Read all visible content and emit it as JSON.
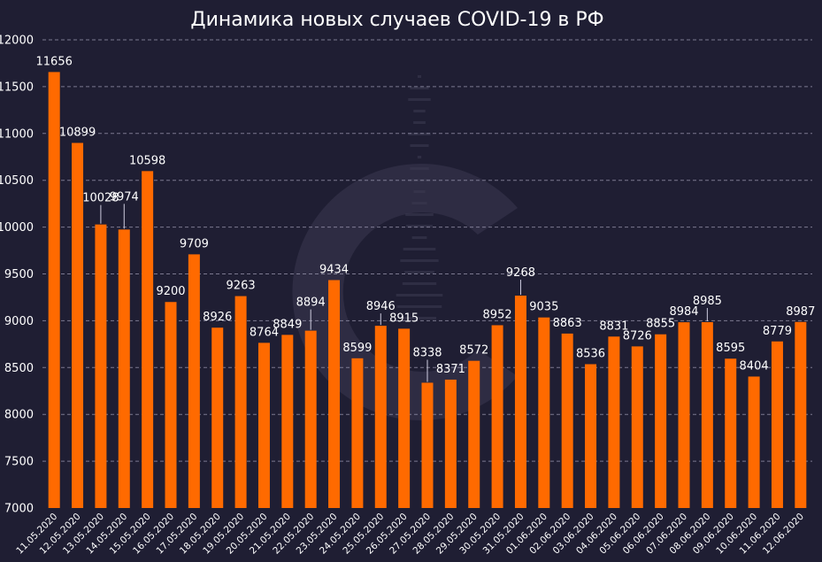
{
  "colors": {
    "background": "#1f1e33",
    "bar": "#ff6a00",
    "text": "#ffffff",
    "grid": "#9a98b0",
    "watermark": "#3a3950"
  },
  "watermark": {
    "icon": "logo-c-watermark-icon"
  },
  "chart_data": {
    "type": "bar",
    "title": "Динамика новых случаев COVID-19 в РФ",
    "xlabel": "",
    "ylabel": "",
    "ylim": [
      7000,
      12000
    ],
    "yticks": [
      7000,
      7500,
      8000,
      8500,
      9000,
      9500,
      10000,
      10500,
      11000,
      11500,
      12000
    ],
    "grid": true,
    "categories": [
      "11.05.2020",
      "12.05.2020",
      "13.05.2020",
      "14.05.2020",
      "15.05.2020",
      "16.05.2020",
      "17.05.2020",
      "18.05.2020",
      "19.05.2020",
      "20.05.2020",
      "21.05.2020",
      "22.05.2020",
      "23.05.2020",
      "24.05.2020",
      "25.05.2020",
      "26.05.2020",
      "27.05.2020",
      "28.05.2020",
      "29.05.2020",
      "30.05.2020",
      "31.05.2020",
      "01.06.2020",
      "02.06.2020",
      "03.06.2020",
      "04.06.2020",
      "05.06.2020",
      "06.06.2020",
      "07.06.2020",
      "08.06.2020",
      "09.06.2020",
      "10.06.2020",
      "11.06.2020",
      "12.06.2020"
    ],
    "values": [
      11656,
      10899,
      10028,
      9974,
      10598,
      9200,
      9709,
      8926,
      9263,
      8764,
      8849,
      8894,
      9434,
      8599,
      8946,
      8915,
      8338,
      8371,
      8572,
      8952,
      9268,
      9035,
      8863,
      8536,
      8831,
      8726,
      8855,
      8984,
      8985,
      8595,
      8404,
      8779,
      8987
    ],
    "labels": [
      "11656",
      "10899",
      "10028",
      "9974",
      "10598",
      "9200",
      "9709",
      "8926",
      "9263",
      "8764",
      "8849",
      "8894",
      "9434",
      "8599",
      "8946",
      "8915",
      "8338",
      "8371",
      "8572",
      "8952",
      "9268",
      "9035",
      "8863",
      "8536",
      "8831",
      "8726",
      "8855",
      "8984",
      "8985",
      "8595",
      "8404",
      "8779",
      "8987"
    ]
  }
}
